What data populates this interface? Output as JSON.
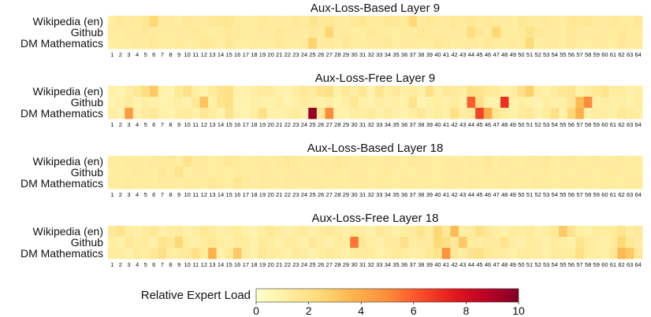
{
  "chart_data": {
    "type": "heatmap",
    "rows": [
      "Wikipedia (en)",
      "Github",
      "DM Mathematics"
    ],
    "x_ticks": [
      "1",
      "2",
      "3",
      "4",
      "5",
      "6",
      "7",
      "8",
      "9",
      "10",
      "11",
      "12",
      "13",
      "14",
      "15",
      "16",
      "17",
      "18",
      "19",
      "20",
      "21",
      "22",
      "23",
      "24",
      "25",
      "26",
      "27",
      "28",
      "29",
      "30",
      "31",
      "32",
      "33",
      "34",
      "35",
      "36",
      "37",
      "38",
      "39",
      "40",
      "41",
      "42",
      "43",
      "44",
      "45",
      "46",
      "47",
      "48",
      "49",
      "50",
      "51",
      "52",
      "53",
      "54",
      "55",
      "56",
      "57",
      "58",
      "59",
      "60",
      "61",
      "62",
      "63",
      "64"
    ],
    "colorbar": {
      "label": "Relative Expert Load",
      "range": [
        0,
        10
      ],
      "ticks": [
        "0",
        "2",
        "4",
        "6",
        "8",
        "10"
      ],
      "colors": [
        "#ffffcc",
        "#ffeda0",
        "#fed976",
        "#feb24c",
        "#fd8d3c",
        "#fc4e2a",
        "#e31a1c",
        "#bd0026",
        "#800026"
      ]
    },
    "panels": [
      {
        "title": "Aux-Loss-Based Layer 9",
        "matrix": [
          [
            1.2,
            1.5,
            1.3,
            1.4,
            1.6,
            2.5,
            1.3,
            1.4,
            1.2,
            1.5,
            1.4,
            1.3,
            1.5,
            1.6,
            1.7,
            1.4,
            1.3,
            1.2,
            1.5,
            1.4,
            1.3,
            1.2,
            1.5,
            1.4,
            1.8,
            1.5,
            1.6,
            1.4,
            1.3,
            1.5,
            1.7,
            1.4,
            1.3,
            1.6,
            1.5,
            1.4,
            2.5,
            1.3,
            1.6,
            1.4,
            1.3,
            1.5,
            1.4,
            1.6,
            1.3,
            1.5,
            1.4,
            1.3,
            1.2,
            1.5,
            1.4,
            1.3,
            1.5,
            1.4,
            1.3,
            1.6,
            1.5,
            1.7,
            1.4,
            1.3,
            1.5,
            1.4,
            1.3,
            1.5
          ],
          [
            1.3,
            1.2,
            1.4,
            1.3,
            1.5,
            1.4,
            1.3,
            1.2,
            1.4,
            1.3,
            1.5,
            1.4,
            1.2,
            1.3,
            1.5,
            1.4,
            1.3,
            1.2,
            1.4,
            1.3,
            1.5,
            1.4,
            1.3,
            1.2,
            1.5,
            1.4,
            2.6,
            1.3,
            1.4,
            1.2,
            1.3,
            1.5,
            1.4,
            1.3,
            1.2,
            1.4,
            1.3,
            1.5,
            1.4,
            1.3,
            1.2,
            1.4,
            1.3,
            2.2,
            1.5,
            1.4,
            2.5,
            1.3,
            1.2,
            1.4,
            1.8,
            1.5,
            1.4,
            1.3,
            1.2,
            1.5,
            1.4,
            1.3,
            1.2,
            1.4,
            1.3,
            1.5,
            1.4,
            1.3
          ],
          [
            1.2,
            1.3,
            1.2,
            1.4,
            1.3,
            1.5,
            1.2,
            1.3,
            1.4,
            1.2,
            1.3,
            1.5,
            1.4,
            1.2,
            1.6,
            1.3,
            1.2,
            1.4,
            1.3,
            1.2,
            1.5,
            1.3,
            1.2,
            1.4,
            2.7,
            1.3,
            1.4,
            1.2,
            1.5,
            1.3,
            1.2,
            1.4,
            1.3,
            1.5,
            1.2,
            1.3,
            1.4,
            1.2,
            1.3,
            1.5,
            1.4,
            1.2,
            1.3,
            1.4,
            1.2,
            1.5,
            1.3,
            1.2,
            1.4,
            1.3,
            2.4,
            1.2,
            1.3,
            1.4,
            1.2,
            1.5,
            1.3,
            1.2,
            1.4,
            1.3,
            1.2,
            1.5,
            1.3,
            1.4
          ]
        ]
      },
      {
        "title": "Aux-Loss-Free Layer 9",
        "matrix": [
          [
            1.0,
            0.8,
            1.2,
            1.5,
            2.2,
            3.0,
            1.0,
            0.8,
            1.5,
            2.0,
            1.2,
            0.9,
            1.4,
            1.8,
            2.0,
            1.0,
            0.9,
            1.1,
            1.4,
            1.3,
            1.0,
            0.8,
            1.2,
            1.5,
            1.3,
            1.8,
            2.0,
            1.0,
            1.5,
            1.2,
            1.6,
            0.9,
            1.8,
            1.2,
            1.5,
            1.0,
            1.3,
            1.0,
            2.0,
            1.1,
            1.5,
            1.4,
            1.2,
            2.0,
            1.8,
            1.5,
            1.4,
            1.0,
            1.2,
            2.0,
            2.8,
            1.2,
            1.0,
            1.4,
            1.6,
            1.8,
            1.0,
            1.3,
            1.5,
            1.8,
            1.2,
            1.3,
            1.0,
            1.2
          ],
          [
            0.8,
            1.0,
            1.3,
            0.9,
            1.1,
            1.0,
            0.8,
            1.0,
            1.2,
            0.9,
            1.5,
            3.2,
            1.0,
            1.8,
            2.0,
            0.8,
            0.9,
            1.1,
            1.0,
            0.9,
            1.2,
            0.8,
            1.0,
            1.3,
            1.1,
            1.0,
            1.2,
            0.8,
            1.1,
            1.6,
            1.0,
            0.9,
            1.2,
            1.0,
            1.1,
            1.0,
            1.9,
            0.8,
            1.0,
            1.2,
            1.0,
            1.3,
            1.0,
            6.0,
            2.0,
            1.0,
            0.9,
            7.0,
            1.0,
            1.1,
            1.0,
            0.8,
            1.2,
            1.0,
            1.1,
            1.5,
            3.5,
            5.0,
            1.0,
            1.2,
            1.0,
            1.1,
            1.0,
            1.3
          ],
          [
            1.2,
            0.9,
            4.5,
            1.0,
            1.3,
            1.5,
            1.0,
            0.8,
            1.2,
            1.4,
            1.0,
            1.6,
            1.3,
            0.9,
            1.8,
            1.0,
            0.8,
            1.2,
            2.0,
            1.0,
            0.9,
            1.1,
            1.3,
            1.0,
            9.5,
            1.5,
            5.0,
            1.0,
            0.9,
            1.2,
            1.1,
            1.4,
            1.0,
            1.3,
            1.0,
            0.9,
            1.2,
            1.5,
            1.0,
            1.3,
            1.0,
            2.0,
            1.2,
            1.4,
            6.5,
            4.0,
            1.6,
            1.2,
            1.0,
            1.3,
            1.5,
            1.0,
            1.2,
            2.0,
            1.0,
            2.5,
            3.8,
            1.0,
            1.3,
            1.2,
            1.0,
            1.5,
            1.3,
            1.2
          ]
        ]
      },
      {
        "title": "Aux-Loss-Based Layer 18",
        "matrix": [
          [
            1.3,
            1.2,
            1.4,
            1.3,
            1.2,
            1.4,
            1.3,
            1.5,
            1.2,
            1.9,
            1.3,
            1.4,
            1.2,
            1.3,
            1.5,
            1.4,
            1.2,
            1.3,
            1.4,
            1.2,
            1.3,
            1.5,
            1.4,
            1.2,
            1.3,
            1.4,
            1.2,
            1.5,
            1.3,
            1.2,
            1.4,
            1.3,
            1.2,
            1.4,
            1.3,
            1.2,
            1.5,
            1.4,
            1.3,
            1.2,
            1.4,
            1.3,
            1.2,
            1.4,
            1.3,
            1.5,
            1.2,
            1.4,
            1.3,
            1.2,
            1.4,
            1.3,
            1.5,
            1.2,
            1.3,
            1.4,
            1.2,
            1.3,
            1.4,
            1.2,
            1.3,
            1.4,
            1.2,
            1.3
          ],
          [
            1.2,
            1.3,
            1.2,
            1.4,
            1.3,
            1.2,
            1.5,
            1.3,
            1.8,
            1.2,
            1.3,
            1.4,
            1.2,
            1.3,
            1.2,
            1.4,
            1.3,
            1.2,
            1.4,
            1.3,
            1.2,
            1.3,
            1.4,
            1.2,
            1.3,
            1.2,
            1.4,
            1.3,
            1.2,
            1.4,
            1.3,
            1.2,
            1.3,
            1.4,
            1.2,
            1.3,
            1.2,
            1.4,
            1.3,
            1.2,
            1.3,
            1.4,
            1.2,
            1.3,
            1.2,
            1.4,
            1.3,
            1.2,
            1.4,
            1.3,
            1.2,
            1.3,
            1.4,
            1.2,
            1.3,
            1.2,
            1.4,
            1.3,
            1.2,
            1.3,
            1.4,
            1.2,
            1.3,
            1.2
          ],
          [
            1.3,
            1.2,
            1.4,
            1.2,
            1.3,
            1.2,
            1.4,
            1.3,
            1.2,
            1.4,
            1.3,
            1.2,
            1.5,
            1.3,
            1.2,
            1.7,
            1.3,
            1.2,
            1.4,
            1.3,
            1.2,
            1.4,
            1.3,
            1.2,
            1.3,
            1.4,
            1.2,
            1.3,
            1.2,
            1.4,
            1.3,
            1.2,
            1.4,
            1.3,
            1.2,
            1.3,
            1.4,
            1.2,
            1.3,
            1.2,
            1.4,
            1.3,
            1.2,
            1.4,
            1.3,
            1.2,
            1.3,
            1.4,
            1.2,
            1.3,
            1.2,
            1.4,
            1.3,
            1.2,
            1.3,
            1.4,
            1.2,
            1.3,
            1.2,
            1.4,
            1.3,
            1.2,
            1.3,
            1.4
          ]
        ]
      },
      {
        "title": "Aux-Loss-Free Layer 18",
        "matrix": [
          [
            1.5,
            1.8,
            1.2,
            1.0,
            1.3,
            1.5,
            1.0,
            1.2,
            1.4,
            1.0,
            1.2,
            1.5,
            1.3,
            1.0,
            1.2,
            1.4,
            1.0,
            0.9,
            1.2,
            1.5,
            1.3,
            1.0,
            1.2,
            1.4,
            1.0,
            1.2,
            1.5,
            1.3,
            1.0,
            1.4,
            1.2,
            1.0,
            1.5,
            1.3,
            1.0,
            1.2,
            1.4,
            1.8,
            1.3,
            2.5,
            1.5,
            3.5,
            1.2,
            1.3,
            2.0,
            1.5,
            1.2,
            1.0,
            1.3,
            1.2,
            1.4,
            1.0,
            1.2,
            1.5,
            3.0,
            1.8,
            1.2,
            1.0,
            1.3,
            1.2,
            1.4,
            1.8,
            1.2,
            1.5
          ],
          [
            1.2,
            1.0,
            1.5,
            1.2,
            1.3,
            1.0,
            1.8,
            1.5,
            2.5,
            1.2,
            1.0,
            1.3,
            1.5,
            1.2,
            1.0,
            1.3,
            1.2,
            1.0,
            1.4,
            1.2,
            1.0,
            1.3,
            1.2,
            1.0,
            1.5,
            1.2,
            1.0,
            1.3,
            1.2,
            5.5,
            1.5,
            1.2,
            1.0,
            1.4,
            1.3,
            2.0,
            1.2,
            1.4,
            1.3,
            2.5,
            2.0,
            1.5,
            3.0,
            1.3,
            1.2,
            1.4,
            1.3,
            1.8,
            1.2,
            1.0,
            1.3,
            1.2,
            1.0,
            1.4,
            1.2,
            1.0,
            1.8,
            1.3,
            1.2,
            1.0,
            1.3,
            2.5,
            1.5,
            1.3
          ],
          [
            1.3,
            1.2,
            1.0,
            1.4,
            1.2,
            1.5,
            2.0,
            1.2,
            1.3,
            1.4,
            2.0,
            1.3,
            3.8,
            1.0,
            1.4,
            3.0,
            1.2,
            1.0,
            1.5,
            1.3,
            1.2,
            1.0,
            1.4,
            1.3,
            1.0,
            1.2,
            1.5,
            1.3,
            1.0,
            1.2,
            1.4,
            1.3,
            1.0,
            1.2,
            1.4,
            1.3,
            1.0,
            1.2,
            1.5,
            1.8,
            4.8,
            1.5,
            1.2,
            1.8,
            2.0,
            1.5,
            1.3,
            1.2,
            1.0,
            1.4,
            1.3,
            1.2,
            1.0,
            1.4,
            1.3,
            1.2,
            2.0,
            1.3,
            1.2,
            1.0,
            1.5,
            3.5,
            3.0,
            1.5
          ]
        ]
      }
    ]
  }
}
